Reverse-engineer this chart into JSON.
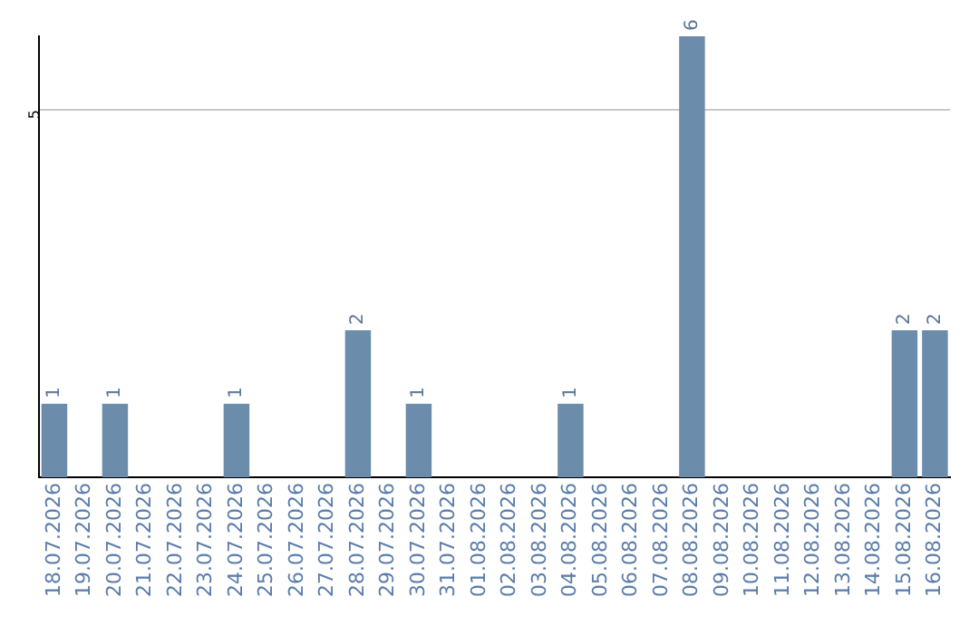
{
  "chart_data": {
    "type": "bar",
    "categories": [
      "18.07.2026",
      "19.07.2026",
      "20.07.2026",
      "21.07.2026",
      "22.07.2026",
      "23.07.2026",
      "24.07.2026",
      "25.07.2026",
      "26.07.2026",
      "27.07.2026",
      "28.07.2026",
      "29.07.2026",
      "30.07.2026",
      "31.07.2026",
      "01.08.2026",
      "02.08.2026",
      "03.08.2026",
      "04.08.2026",
      "05.08.2026",
      "06.08.2026",
      "07.08.2026",
      "08.08.2026",
      "09.08.2026",
      "10.08.2026",
      "11.08.2026",
      "12.08.2026",
      "13.08.2026",
      "14.08.2026",
      "15.08.2026",
      "16.08.2026"
    ],
    "values": [
      1,
      0,
      1,
      0,
      0,
      0,
      1,
      0,
      0,
      0,
      2,
      0,
      1,
      0,
      0,
      0,
      0,
      1,
      0,
      0,
      0,
      6,
      0,
      0,
      0,
      0,
      0,
      0,
      2,
      2
    ],
    "value_labels": [
      "1",
      null,
      "1",
      null,
      null,
      null,
      "1",
      null,
      null,
      null,
      "2",
      null,
      "1",
      null,
      null,
      null,
      null,
      "1",
      null,
      null,
      null,
      "6",
      null,
      null,
      null,
      null,
      null,
      null,
      "2",
      "2"
    ],
    "color": "#6b8cab",
    "ylim": [
      0,
      6
    ],
    "yticks": [
      5
    ],
    "grid": "y",
    "legend": false
  }
}
